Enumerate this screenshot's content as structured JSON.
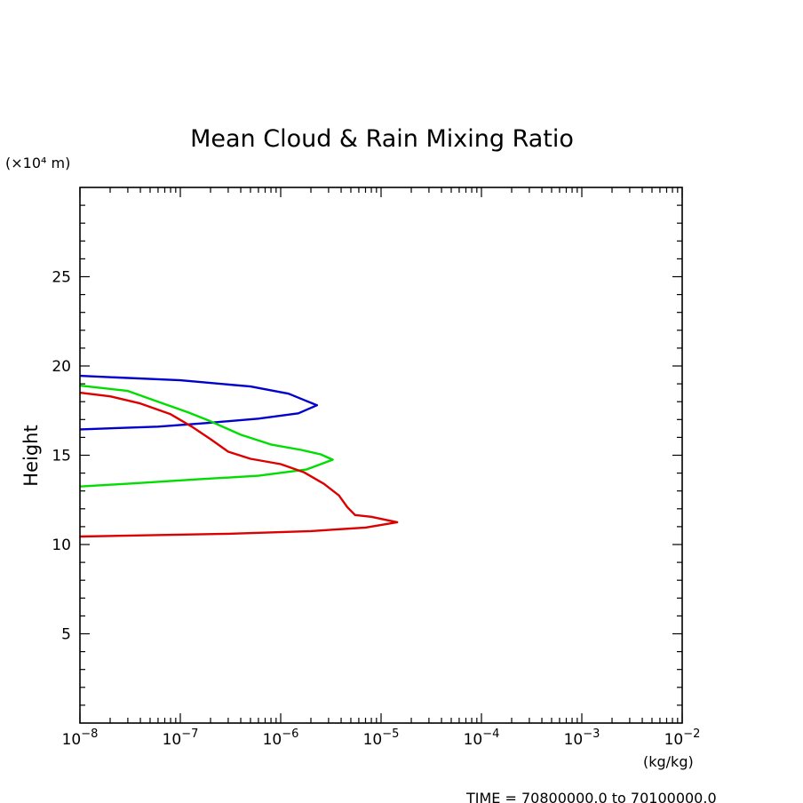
{
  "chart_data": {
    "type": "line",
    "title": "Mean Cloud & Rain Mixing Ratio",
    "ylabel": "Height",
    "y_units": "(×10⁴ m)",
    "x_units": "(kg/kg)",
    "x_scale": "log",
    "xlim": [
      1e-08,
      0.01
    ],
    "ylim": [
      0,
      30
    ],
    "x_tick_values": [
      -8,
      -7,
      -6,
      -5,
      -4,
      -3,
      -2
    ],
    "y_ticks": [
      5,
      10,
      15,
      20,
      25
    ],
    "y_tick_labels": [
      "5",
      "10",
      "15",
      "20",
      "25"
    ],
    "grid": false,
    "footer": "TIME = 70800000.0 to 70100000.0",
    "series": [
      {
        "color": "#0000cc",
        "points": [
          [
            1e-08,
            19.45
          ],
          [
            1e-07,
            19.2
          ],
          [
            5e-07,
            18.85
          ],
          [
            1.2e-06,
            18.45
          ],
          [
            1.7e-06,
            18.1
          ],
          [
            2.3e-06,
            17.8
          ],
          [
            1.5e-06,
            17.35
          ],
          [
            6e-07,
            17.05
          ],
          [
            1.8e-07,
            16.8
          ],
          [
            6e-08,
            16.6
          ],
          [
            1e-08,
            16.45
          ]
        ]
      },
      {
        "color": "#00dd00",
        "points": [
          [
            1e-08,
            18.9
          ],
          [
            3e-08,
            18.6
          ],
          [
            6e-08,
            18.0
          ],
          [
            1.2e-07,
            17.4
          ],
          [
            2e-07,
            16.9
          ],
          [
            4e-07,
            16.15
          ],
          [
            8e-07,
            15.6
          ],
          [
            1.6e-06,
            15.3
          ],
          [
            2.5e-06,
            15.05
          ],
          [
            3.3e-06,
            14.75
          ],
          [
            1.8e-06,
            14.2
          ],
          [
            6e-07,
            13.85
          ],
          [
            1.5e-07,
            13.65
          ],
          [
            4e-08,
            13.45
          ],
          [
            1e-08,
            13.25
          ]
        ]
      },
      {
        "color": "#dd0000",
        "points": [
          [
            1e-08,
            18.5
          ],
          [
            2e-08,
            18.3
          ],
          [
            4e-08,
            17.9
          ],
          [
            8e-08,
            17.3
          ],
          [
            1.3e-07,
            16.6
          ],
          [
            2e-07,
            15.9
          ],
          [
            3e-07,
            15.2
          ],
          [
            5e-07,
            14.8
          ],
          [
            1e-06,
            14.5
          ],
          [
            1.7e-06,
            14.05
          ],
          [
            2.7e-06,
            13.4
          ],
          [
            3.8e-06,
            12.75
          ],
          [
            4.6e-06,
            12.1
          ],
          [
            5.5e-06,
            11.65
          ],
          [
            8e-06,
            11.55
          ],
          [
            1.45e-05,
            11.25
          ],
          [
            7e-06,
            10.95
          ],
          [
            2e-06,
            10.75
          ],
          [
            3e-07,
            10.6
          ],
          [
            1e-08,
            10.45
          ]
        ]
      }
    ]
  }
}
